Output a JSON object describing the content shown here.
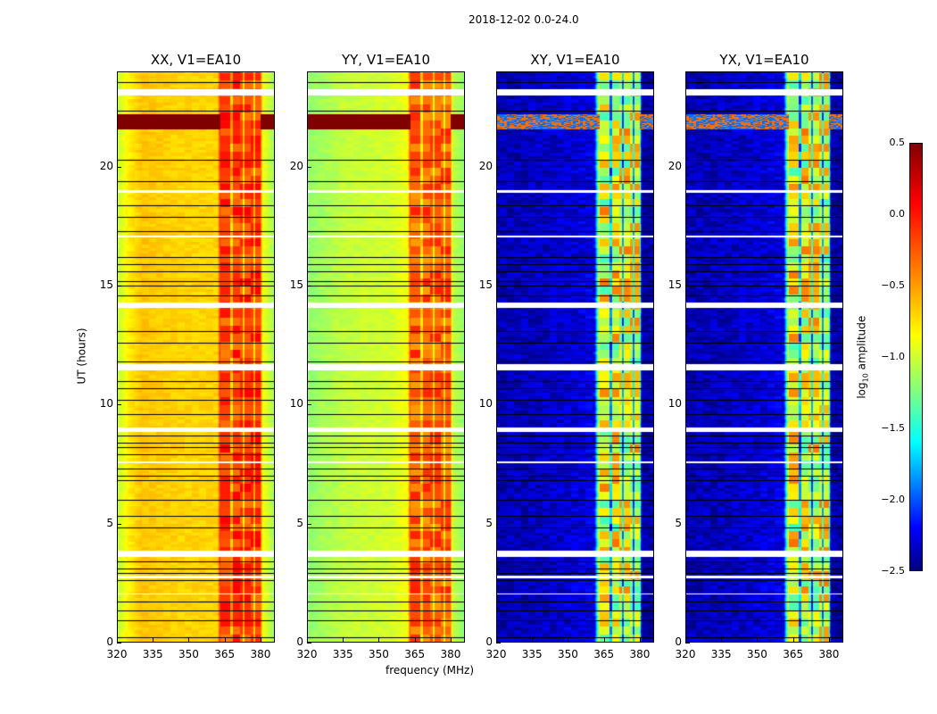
{
  "chart_data": {
    "type": "heatmap",
    "title": "2018-12-02 0.0-24.0",
    "xlabel": "frequency (MHz)",
    "ylabel": "UT (hours)",
    "xlim": [
      320,
      386
    ],
    "ylim": [
      0,
      24
    ],
    "xticks": [
      "320",
      "335",
      "350",
      "365",
      "380"
    ],
    "yticks": [
      "0",
      "5",
      "10",
      "15",
      "20"
    ],
    "colormap": "jet",
    "colorbar": {
      "label_prefix": "log",
      "label_sub": "10",
      "label_suffix": " amplitude",
      "range": [
        -2.5,
        0.5
      ],
      "ticks": [
        "0.5",
        "0.0",
        "−0.5",
        "−1.0",
        "−1.5",
        "−2.0",
        "−2.5"
      ]
    },
    "panels": [
      {
        "title": "XX, V1=EA10",
        "kind": "auto",
        "profile": [
          [
            320,
            -0.8
          ],
          [
            324,
            -0.6
          ],
          [
            330,
            -0.45
          ],
          [
            345,
            -0.5
          ],
          [
            362,
            -0.5
          ],
          [
            363,
            -0.05
          ],
          [
            380,
            -0.05
          ],
          [
            381,
            -0.65
          ],
          [
            386,
            -0.9
          ]
        ]
      },
      {
        "title": "YY, V1=EA10",
        "kind": "auto",
        "profile": [
          [
            320,
            -0.95
          ],
          [
            335,
            -0.8
          ],
          [
            355,
            -0.75
          ],
          [
            362,
            -0.65
          ],
          [
            363,
            -0.15
          ],
          [
            380,
            -0.15
          ],
          [
            381,
            -0.8
          ],
          [
            386,
            -0.95
          ]
        ]
      },
      {
        "title": "XY, V1=EA10",
        "kind": "cross",
        "profile": [
          [
            320,
            -2.35
          ],
          [
            340,
            -2.3
          ],
          [
            361,
            -2.2
          ],
          [
            363,
            -0.7
          ],
          [
            380,
            -0.7
          ],
          [
            381,
            -2.4
          ],
          [
            386,
            -2.4
          ]
        ]
      },
      {
        "title": "YX, V1=EA10",
        "kind": "cross",
        "profile": [
          [
            320,
            -2.35
          ],
          [
            340,
            -2.3
          ],
          [
            361,
            -2.2
          ],
          [
            363,
            -0.7
          ],
          [
            380,
            -0.7
          ],
          [
            381,
            -2.4
          ],
          [
            386,
            -2.4
          ]
        ]
      }
    ],
    "band_gaps_mhz": [
      368,
      373,
      377.5
    ],
    "rfi_hours": [
      [
        21.6,
        22.25
      ]
    ],
    "flagged_hours": [
      [
        23.05,
        23.3
      ],
      [
        18.95,
        19.05
      ],
      [
        17.05,
        17.12
      ],
      [
        14.1,
        14.3
      ],
      [
        11.45,
        11.7
      ],
      [
        8.85,
        9.05
      ],
      [
        7.55,
        7.62
      ],
      [
        3.6,
        3.85
      ],
      [
        2.7,
        2.8
      ],
      [
        2.0,
        2.05
      ]
    ],
    "black_line_hours": [
      23.6,
      22.4,
      20.3,
      19.4,
      18.4,
      17.9,
      17.3,
      16.2,
      15.9,
      15.6,
      15.2,
      15.0,
      14.6,
      13.1,
      12.6,
      11.8,
      11.0,
      10.7,
      10.2,
      9.6,
      8.7,
      8.4,
      8.2,
      7.9,
      7.3,
      7.0,
      6.8,
      6.0,
      5.3,
      4.8,
      3.4,
      3.1,
      2.9,
      2.6,
      1.7,
      1.3,
      0.9,
      0.2
    ]
  }
}
